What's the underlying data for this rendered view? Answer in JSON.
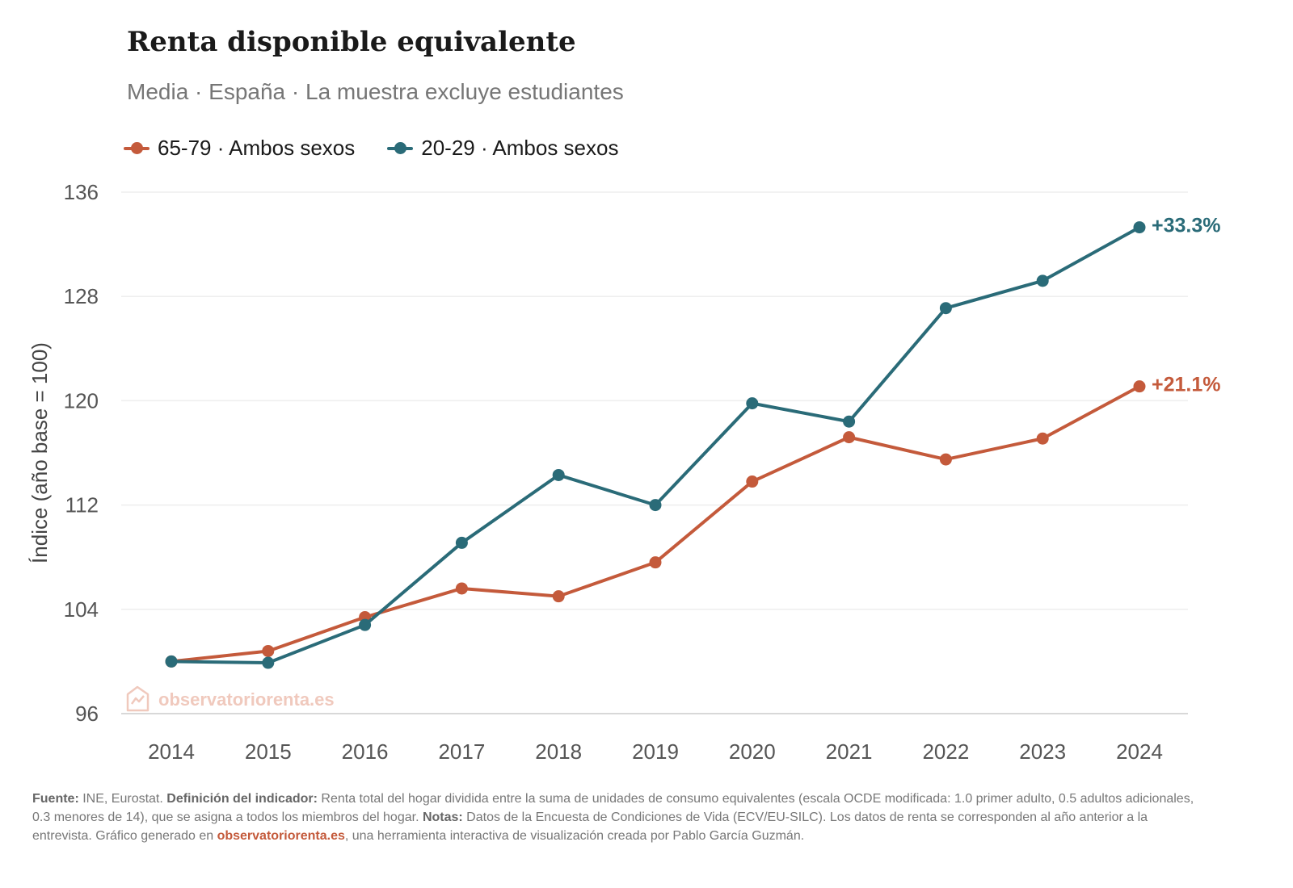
{
  "header": {
    "title": "Renta disponible equivalente",
    "subtitle": "Media · España · La muestra excluye estudiantes"
  },
  "watermark": "observatoriorenta.es",
  "chart_data": {
    "type": "line",
    "title": "Renta disponible equivalente",
    "subtitle": "Media · España · La muestra excluye estudiantes",
    "xlabel": "",
    "ylabel": "Índice (año base = 100)",
    "ylim": [
      96,
      136
    ],
    "yticks": [
      96,
      104,
      112,
      120,
      128,
      136
    ],
    "grid": true,
    "legend_position": "top-left",
    "x": [
      "2014",
      "2015",
      "2016",
      "2017",
      "2018",
      "2019",
      "2020",
      "2021",
      "2022",
      "2023",
      "2024"
    ],
    "series": [
      {
        "name": "65-79 · Ambos sexos",
        "color": "#c45a3b",
        "end_label": "+21.1%",
        "values": [
          100.0,
          100.8,
          103.4,
          105.6,
          105.0,
          107.6,
          113.8,
          117.2,
          115.5,
          117.1,
          121.1
        ]
      },
      {
        "name": "20-29 · Ambos sexos",
        "color": "#2a6b78",
        "end_label": "+33.3%",
        "values": [
          100.0,
          99.9,
          102.8,
          109.1,
          114.3,
          112.0,
          119.8,
          118.4,
          127.1,
          129.2,
          133.3
        ]
      }
    ]
  },
  "footer": {
    "source_label": "Fuente:",
    "source_text": " INE, Eurostat. ",
    "definition_label": "Definición del indicador:",
    "definition_text": " Renta total del hogar dividida entre la suma de unidades de consumo equivalentes (escala OCDE modificada: 1.0 primer adulto, 0.5 adultos adicionales, 0.3 menores de 14), que se asigna a todos los miembros del hogar. ",
    "notes_label": "Notas:",
    "notes_text": " Datos de la Encuesta de Condiciones de Vida (ECV/EU-SILC). Los datos de renta se corresponden al año anterior a la entrevista. Gráfico generado en ",
    "link": "observatoriorenta.es",
    "closing_text": ", una herramienta interactiva de visualización creada por Pablo García Guzmán."
  }
}
